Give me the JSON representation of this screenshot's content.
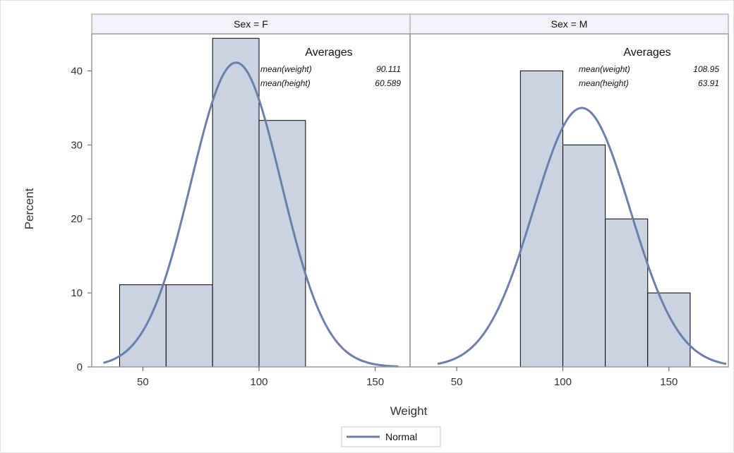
{
  "chart_data": {
    "type": "bar",
    "ylabel": "Percent",
    "xlabel": "Weight",
    "ylim": [
      0,
      45
    ],
    "yticks": [
      0,
      10,
      20,
      30,
      40
    ],
    "xticks": [
      50,
      100,
      150
    ],
    "panels": [
      {
        "title": "Sex = F",
        "xlim": [
          28,
          165
        ],
        "bins": [
          {
            "from": 40,
            "to": 60,
            "value": 11.1
          },
          {
            "from": 60,
            "to": 80,
            "value": 11.1
          },
          {
            "from": 80,
            "to": 100,
            "value": 44.4
          },
          {
            "from": 100,
            "to": 120,
            "value": 33.3
          }
        ],
        "normal": {
          "mean": 90.111,
          "sd": 19.4,
          "bin_width": 20,
          "x_range": [
            33,
            160
          ]
        },
        "averages": {
          "title": "Averages",
          "rows": [
            {
              "label": "mean(weight)",
              "value": "90.111"
            },
            {
              "label": "mean(height)",
              "value": "60.589"
            }
          ]
        }
      },
      {
        "title": "Sex = M",
        "xlim": [
          28,
          178
        ],
        "bins": [
          {
            "from": 80,
            "to": 100,
            "value": 40
          },
          {
            "from": 100,
            "to": 120,
            "value": 30
          },
          {
            "from": 120,
            "to": 140,
            "value": 20
          },
          {
            "from": 140,
            "to": 160,
            "value": 10
          }
        ],
        "normal": {
          "mean": 108.95,
          "sd": 22.8,
          "bin_width": 20,
          "x_range": [
            41,
            177
          ]
        },
        "averages": {
          "title": "Averages",
          "rows": [
            {
              "label": "mean(weight)",
              "value": "108.95"
            },
            {
              "label": "mean(height)",
              "value": "63.91"
            }
          ]
        }
      }
    ],
    "legend": {
      "label": "Normal",
      "placement": "bottom-center"
    },
    "colors": {
      "bar_fill": "#c9d3e2",
      "bar_stroke": "#000000",
      "curve": "#6a80a8",
      "panel_header": "#f2f3fa"
    }
  }
}
